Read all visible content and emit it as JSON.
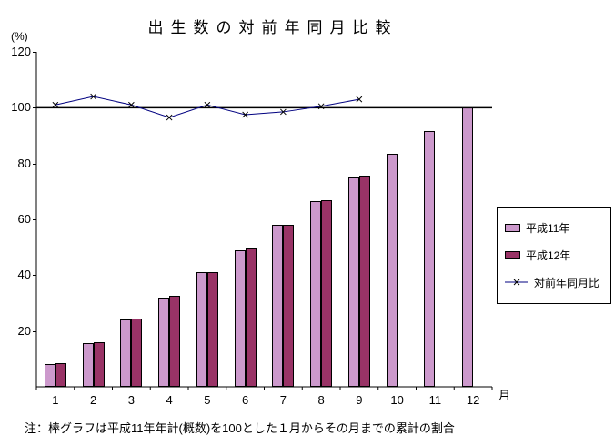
{
  "title": "出生数の対前年同月比較",
  "axis": {
    "y_unit": "(%)",
    "x_unit": "月"
  },
  "note": "注：棒グラフは平成11年年計(概数)を100とした１月からその月までの累計の割合",
  "legend": {
    "items": [
      {
        "label": "平成11年"
      },
      {
        "label": "平成12年"
      },
      {
        "label": "対前年同月比"
      }
    ]
  },
  "colors": {
    "series1": "#cc99cc",
    "series2": "#993366",
    "line": "#000080",
    "marker": "#000000",
    "axis": "#000000"
  },
  "chart_data": {
    "type": "bar",
    "title": "出生数の対前年同月比較",
    "xlabel": "月",
    "ylabel": "(%)",
    "ylim": [
      0,
      120
    ],
    "yticks": [
      20,
      40,
      60,
      80,
      100,
      120
    ],
    "reference_line": 100,
    "legend_position": "right",
    "categories": [
      1,
      2,
      3,
      4,
      5,
      6,
      7,
      8,
      9,
      10,
      11,
      12
    ],
    "series": [
      {
        "name": "平成11年",
        "type": "bar",
        "values": [
          8,
          15.5,
          24,
          32,
          41,
          49,
          58,
          66.5,
          75,
          83.5,
          91.5,
          100
        ]
      },
      {
        "name": "平成12年",
        "type": "bar",
        "values": [
          8.5,
          16,
          24.5,
          32.5,
          41,
          49.5,
          58,
          67,
          75.5,
          null,
          null,
          null
        ]
      },
      {
        "name": "対前年同月比",
        "type": "line",
        "values": [
          101,
          104,
          101,
          96.5,
          101,
          97.5,
          98.5,
          100.5,
          103,
          null,
          null,
          null
        ]
      }
    ]
  }
}
